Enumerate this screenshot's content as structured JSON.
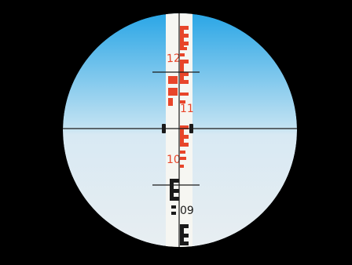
{
  "staff": {
    "labels": [
      {
        "text": "12",
        "color": "#e8452a"
      },
      {
        "text": "11",
        "color": "#e8452a"
      },
      {
        "text": "10",
        "color": "#e8452a"
      },
      {
        "text": "09",
        "color": "#1a1a1a"
      }
    ]
  },
  "colors": {
    "sky_top": "#2aa6e6",
    "sky_bottom": "#dfeaf2",
    "staff_red": "#e8452a",
    "staff_black": "#1a1a1a",
    "reticle": "#1a1a1a"
  }
}
